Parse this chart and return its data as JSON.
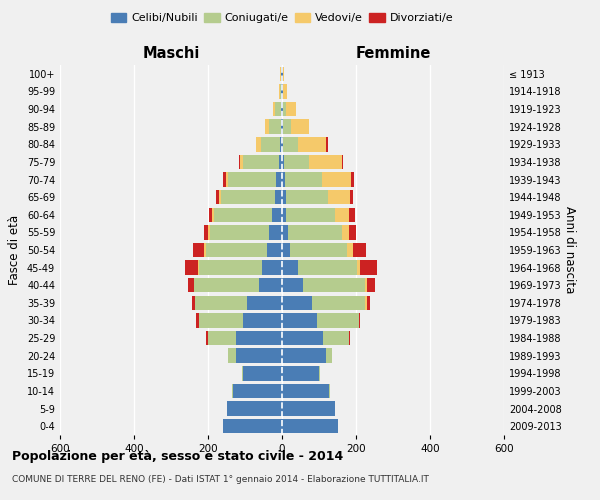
{
  "age_groups": [
    "0-4",
    "5-9",
    "10-14",
    "15-19",
    "20-24",
    "25-29",
    "30-34",
    "35-39",
    "40-44",
    "45-49",
    "50-54",
    "55-59",
    "60-64",
    "65-69",
    "70-74",
    "75-79",
    "80-84",
    "85-89",
    "90-94",
    "95-99",
    "100+"
  ],
  "birth_years": [
    "2009-2013",
    "2004-2008",
    "1999-2003",
    "1994-1998",
    "1989-1993",
    "1984-1988",
    "1979-1983",
    "1974-1978",
    "1969-1973",
    "1964-1968",
    "1959-1963",
    "1954-1958",
    "1949-1953",
    "1944-1948",
    "1939-1943",
    "1934-1938",
    "1929-1933",
    "1924-1928",
    "1919-1923",
    "1914-1918",
    "≤ 1913"
  ],
  "male_celibi": [
    160,
    148,
    133,
    105,
    125,
    125,
    105,
    95,
    62,
    55,
    40,
    35,
    28,
    20,
    16,
    8,
    5,
    4,
    3,
    2,
    2
  ],
  "male_coniugati": [
    0,
    0,
    2,
    4,
    20,
    75,
    120,
    140,
    175,
    170,
    165,
    160,
    155,
    145,
    130,
    98,
    52,
    32,
    16,
    4,
    2
  ],
  "male_vedovi": [
    0,
    0,
    0,
    0,
    0,
    0,
    0,
    0,
    2,
    3,
    5,
    5,
    5,
    5,
    6,
    8,
    14,
    10,
    5,
    2,
    1
  ],
  "male_divorziati": [
    0,
    0,
    0,
    0,
    0,
    5,
    8,
    8,
    14,
    35,
    30,
    12,
    10,
    8,
    8,
    3,
    0,
    0,
    0,
    0,
    0
  ],
  "female_celibi": [
    150,
    142,
    128,
    100,
    118,
    112,
    95,
    82,
    57,
    42,
    22,
    16,
    12,
    10,
    8,
    5,
    4,
    4,
    3,
    2,
    2
  ],
  "female_coniugati": [
    0,
    0,
    2,
    4,
    18,
    68,
    112,
    142,
    168,
    162,
    155,
    145,
    130,
    115,
    100,
    68,
    38,
    20,
    8,
    2,
    1
  ],
  "female_vedovi": [
    0,
    0,
    0,
    0,
    0,
    0,
    0,
    5,
    5,
    8,
    14,
    20,
    40,
    58,
    78,
    88,
    78,
    48,
    28,
    10,
    3
  ],
  "female_divorziati": [
    0,
    0,
    0,
    0,
    0,
    5,
    5,
    10,
    20,
    45,
    35,
    20,
    15,
    10,
    8,
    5,
    5,
    0,
    0,
    0,
    0
  ],
  "colors": {
    "celibi": "#4a7db5",
    "coniugati": "#b5cc8e",
    "vedovi": "#f5c96a",
    "divorziati": "#cc2222"
  },
  "title": "Popolazione per età, sesso e stato civile - 2014",
  "subtitle": "COMUNE DI TERRE DEL RENO (FE) - Dati ISTAT 1° gennaio 2014 - Elaborazione TUTTITALIA.IT",
  "xlabel_left": "Maschi",
  "xlabel_right": "Femmine",
  "ylabel_left": "Fasce di età",
  "ylabel_right": "Anni di nascita",
  "xlim": 600,
  "bg_color": "#f0f0f0",
  "grid_color": "#ffffff"
}
